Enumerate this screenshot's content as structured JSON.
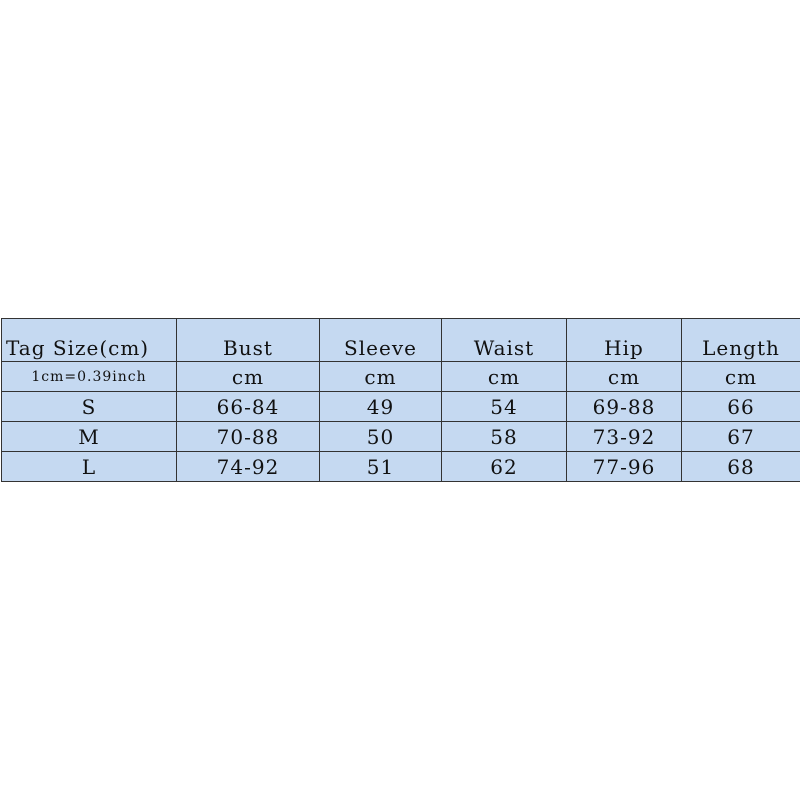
{
  "table": {
    "headers": [
      "Tag Size(cm)",
      "Bust",
      "Sleeve",
      "Waist",
      "Hip",
      "Length"
    ],
    "units": [
      "1cm=0.39inch",
      "cm",
      "cm",
      "cm",
      "cm",
      "cm"
    ],
    "rows": [
      [
        "S",
        "66-84",
        "49",
        "54",
        "69-88",
        "66"
      ],
      [
        "M",
        "70-88",
        "50",
        "58",
        "73-92",
        "67"
      ],
      [
        "L",
        "74-92",
        "51",
        "62",
        "77-96",
        "68"
      ]
    ],
    "background_color": "#c5d9f1"
  }
}
